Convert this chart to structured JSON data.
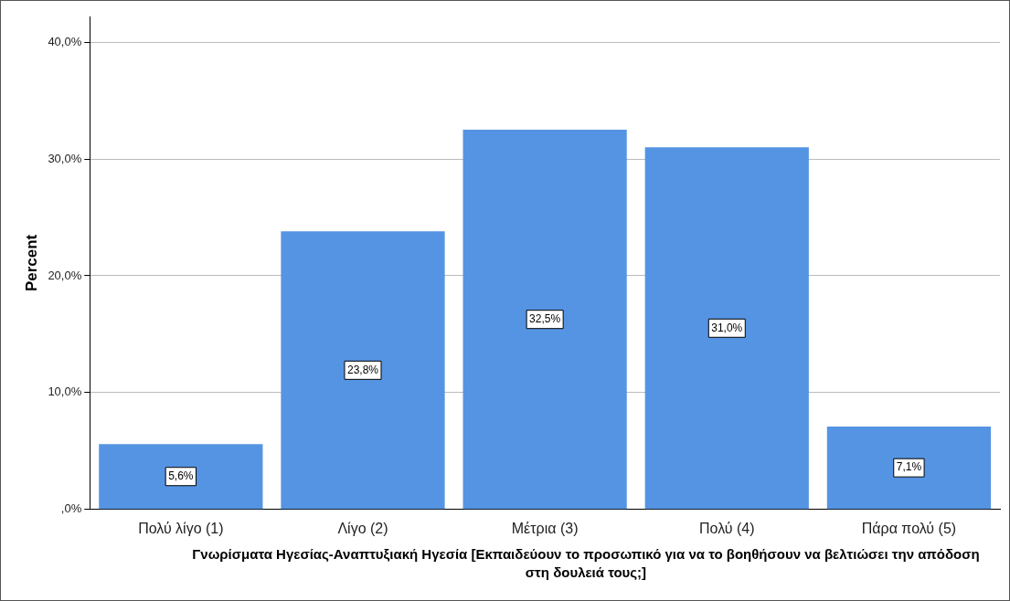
{
  "chart_data": {
    "type": "bar",
    "categories": [
      "Πολύ λίγο (1)",
      "Λίγο (2)",
      "Μέτρια (3)",
      "Πολύ (4)",
      "Πάρα πολύ (5)"
    ],
    "values": [
      5.6,
      23.8,
      32.5,
      31.0,
      7.1
    ],
    "value_labels": [
      "5,6%",
      "23,8%",
      "32,5%",
      "31,0%",
      "7,1%"
    ],
    "color": "#5594e3",
    "ylabel": "Percent",
    "xlabel": "Γνωρίσματα Ηγεσίας-Αναπτυξιακή Ηγεσία [Εκπαιδεύουν το προσωπικό για να το βοηθήσουν να βελτιώσει την απόδοση στη δουλειά τους;]",
    "ylim": [
      0,
      42.2
    ],
    "yticks": [
      {
        "value": 0,
        "label": ",0%"
      },
      {
        "value": 10,
        "label": "10,0%"
      },
      {
        "value": 20,
        "label": "20,0%"
      },
      {
        "value": 30,
        "label": "30,0%"
      },
      {
        "value": 40,
        "label": "40,0%"
      }
    ],
    "grid": "y",
    "legend": false
  }
}
